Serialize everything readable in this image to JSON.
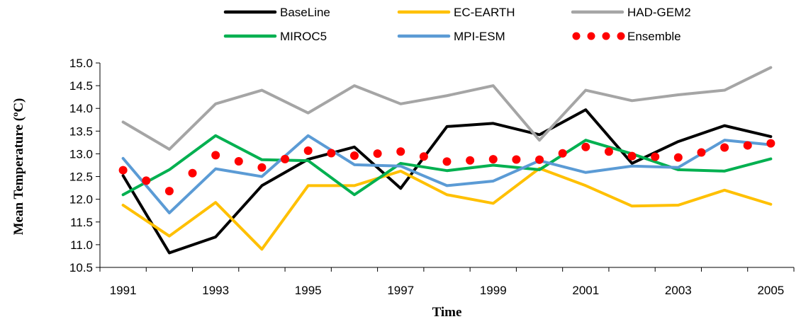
{
  "chart_data": {
    "type": "line",
    "xlabel": "Time",
    "ylabel": "Mean Temperature (ºC)",
    "ylim": [
      10.5,
      15.0
    ],
    "yticks": [
      "10.5",
      "11.0",
      "11.5",
      "12.0",
      "12.5",
      "13.0",
      "13.5",
      "14.0",
      "14.5",
      "15.0"
    ],
    "xlim": [
      1990.5,
      2005.5
    ],
    "xticks": [
      "1991",
      "1993",
      "1995",
      "1997",
      "1999",
      "2001",
      "2003",
      "2005"
    ],
    "grid": false,
    "legend_position": "top",
    "x": [
      1991,
      1992,
      1993,
      1994,
      1995,
      1996,
      1997,
      1998,
      1999,
      2000,
      2001,
      2002,
      2003,
      2004,
      2005
    ],
    "series": [
      {
        "name": "BaseLine",
        "color": "#000000",
        "style": "solid",
        "values": [
          12.52,
          10.82,
          11.17,
          12.3,
          12.88,
          13.15,
          12.24,
          13.6,
          13.67,
          13.42,
          13.97,
          12.79,
          13.27,
          13.62,
          13.38
        ]
      },
      {
        "name": "EC-EARTH",
        "color": "#FFC000",
        "style": "solid",
        "values": [
          11.87,
          11.19,
          11.93,
          10.9,
          12.3,
          12.3,
          12.62,
          12.1,
          11.91,
          12.68,
          12.3,
          11.85,
          11.87,
          12.2,
          11.89
        ]
      },
      {
        "name": "HAD-GEM2",
        "color": "#A5A5A5",
        "style": "solid",
        "values": [
          13.7,
          13.1,
          14.1,
          14.4,
          13.9,
          14.5,
          14.1,
          14.28,
          14.5,
          13.3,
          14.4,
          14.17,
          14.3,
          14.4,
          14.9
        ]
      },
      {
        "name": "MIROC5",
        "color": "#00B050",
        "style": "solid",
        "values": [
          12.1,
          12.65,
          13.4,
          12.87,
          12.85,
          12.1,
          12.79,
          12.63,
          12.75,
          12.65,
          13.3,
          13.0,
          12.65,
          12.62,
          12.89
        ]
      },
      {
        "name": "MPI-ESM",
        "color": "#5B9BD5",
        "style": "solid",
        "values": [
          12.9,
          11.7,
          12.67,
          12.5,
          13.4,
          12.76,
          12.73,
          12.3,
          12.4,
          12.85,
          12.59,
          12.73,
          12.7,
          13.3,
          13.2
        ]
      },
      {
        "name": "Ensemble",
        "color": "#FF0000",
        "style": "dotted",
        "values": [
          12.64,
          12.18,
          12.97,
          12.7,
          13.07,
          12.96,
          13.05,
          12.83,
          12.88,
          12.87,
          13.15,
          12.95,
          12.92,
          13.14,
          13.23
        ]
      }
    ]
  }
}
